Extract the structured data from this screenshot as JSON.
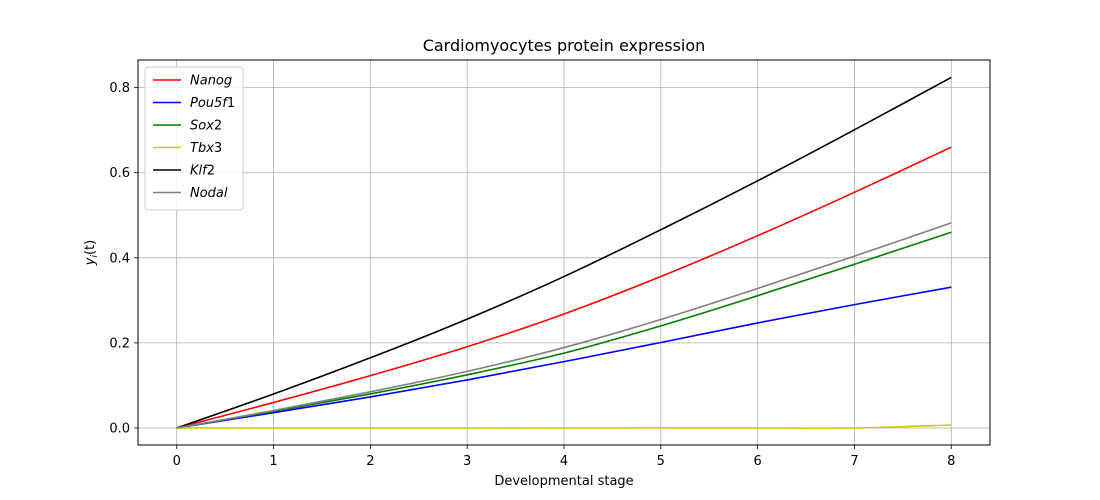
{
  "chart_data": {
    "type": "line",
    "title": "Cardiomyocytes protein expression",
    "xlabel": "Developmental stage",
    "ylabel_var": "y",
    "ylabel_sub": "i",
    "ylabel_rest": "(t)",
    "xlim": [
      -0.4,
      8.4
    ],
    "ylim": [
      -0.04,
      0.865
    ],
    "xticks": [
      0,
      1,
      2,
      3,
      4,
      5,
      6,
      7,
      8
    ],
    "yticks": [
      0.0,
      0.2,
      0.4,
      0.6,
      0.8
    ],
    "ytick_labels": [
      "0.0",
      "0.2",
      "0.4",
      "0.6",
      "0.8"
    ],
    "grid": true,
    "legend_position": "top-left",
    "x": [
      0,
      1,
      2,
      3,
      4,
      5,
      6,
      7,
      8
    ],
    "series": [
      {
        "name": "Nanog",
        "legend_italic": "Nanog",
        "legend_plain": "",
        "color": "#ff0000",
        "values": [
          0.0,
          0.06,
          0.123,
          0.191,
          0.268,
          0.356,
          0.452,
          0.554,
          0.66
        ]
      },
      {
        "name": "Pou5f1",
        "legend_italic": "Pou5f",
        "legend_plain": "1",
        "color": "#0000ff",
        "values": [
          0.0,
          0.036,
          0.073,
          0.113,
          0.156,
          0.201,
          0.247,
          0.29,
          0.331
        ]
      },
      {
        "name": "Sox2",
        "legend_italic": "Sox",
        "legend_plain": "2",
        "color": "#008000",
        "values": [
          0.0,
          0.039,
          0.08,
          0.125,
          0.176,
          0.24,
          0.311,
          0.385,
          0.46
        ]
      },
      {
        "name": "Tbx3",
        "legend_italic": "Tbx",
        "legend_plain": "3",
        "color": "#cccc00",
        "values": [
          0.0,
          0.0,
          0.0,
          0.0,
          0.0,
          0.0005,
          0.0,
          0.0,
          0.007
        ]
      },
      {
        "name": "Klf2",
        "legend_italic": "Klf",
        "legend_plain": "2",
        "color": "#000000",
        "values": [
          0.0,
          0.08,
          0.165,
          0.256,
          0.356,
          0.466,
          0.581,
          0.701,
          0.824
        ]
      },
      {
        "name": "Nodal",
        "legend_italic": "Nodal",
        "legend_plain": "",
        "color": "#808080",
        "values": [
          0.0,
          0.041,
          0.085,
          0.133,
          0.189,
          0.255,
          0.328,
          0.404,
          0.482
        ]
      }
    ]
  }
}
